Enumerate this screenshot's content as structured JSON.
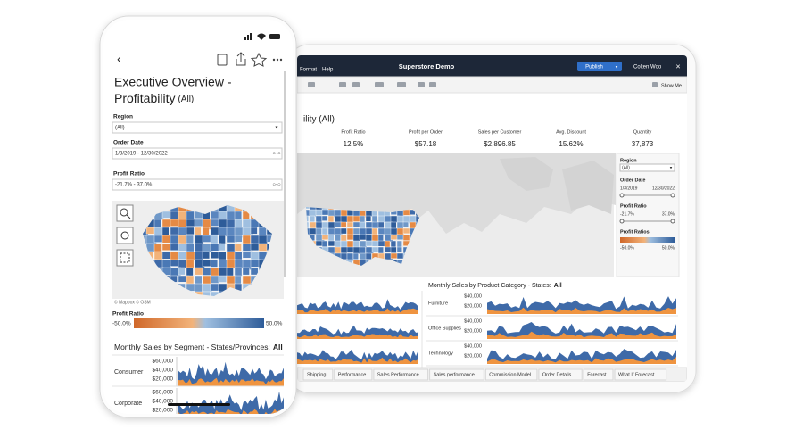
{
  "phone": {
    "title_line1": "Executive Overview -",
    "title_line2": "Profitability",
    "title_suffix": "(All)",
    "filters": [
      {
        "label": "Region",
        "value": "(All)"
      },
      {
        "label": "Order Date",
        "value": "1/3/2019 - 12/30/2022"
      },
      {
        "label": "Profit Ratio",
        "value": "-21.7% - 37.0%"
      }
    ],
    "map_credit": "© Mapbox © OSM",
    "legend": {
      "title": "Profit Ratio",
      "min": "-50.0%",
      "max": "50.0%"
    },
    "chart": {
      "title": "Monthly Sales by Segment - States/Provinces:",
      "filter": "All",
      "rows": [
        {
          "name": "Consumer",
          "ticks": [
            "$60,000",
            "$40,000",
            "$20,000"
          ]
        },
        {
          "name": "Corporate",
          "ticks": [
            "$60,000",
            "$40,000",
            "$20,000"
          ]
        }
      ]
    }
  },
  "tablet": {
    "menu": [
      "Format",
      "Help"
    ],
    "app_title": "Superstore Demo",
    "publish": "Publish",
    "user": "Colten Woo",
    "show_me": "Show Me",
    "page_title": "ility (All)",
    "kpis": [
      {
        "label": "Profit Ratio",
        "value": "12.5%"
      },
      {
        "label": "Profit per Order",
        "value": "$57.18"
      },
      {
        "label": "Sales per Customer",
        "value": "$2,896.85"
      },
      {
        "label": "Avg. Discount",
        "value": "15.62%"
      },
      {
        "label": "Quantity",
        "value": "37,873"
      }
    ],
    "filters": {
      "region_label": "Region",
      "region_value": "(All)",
      "date_label": "Order Date",
      "date_start": "1/3/2019",
      "date_end": "12/30/2022",
      "ratio_label": "Profit Ratio",
      "ratio_min": "-21.7%",
      "ratio_max": "37.0%",
      "legend_title": "Profit Ratios",
      "legend_min": "-50.0%",
      "legend_max": "50.0%"
    },
    "chart": {
      "title": "Monthly Sales by Product Category - States:",
      "filter": "All",
      "rows": [
        {
          "name": "Furniture",
          "ticks": [
            "$40,000",
            "$20,000"
          ]
        },
        {
          "name": "Office Supplies",
          "ticks": [
            "$40,000",
            "$20,000"
          ]
        },
        {
          "name": "Technology",
          "ticks": [
            "$40,000",
            "$20,000"
          ]
        }
      ]
    },
    "tabs": [
      "Shipping",
      "Performance",
      "Sales Performance",
      "Sales performance",
      "Commission Model",
      "Order Details",
      "Forecast",
      "What If Forecast"
    ]
  }
}
